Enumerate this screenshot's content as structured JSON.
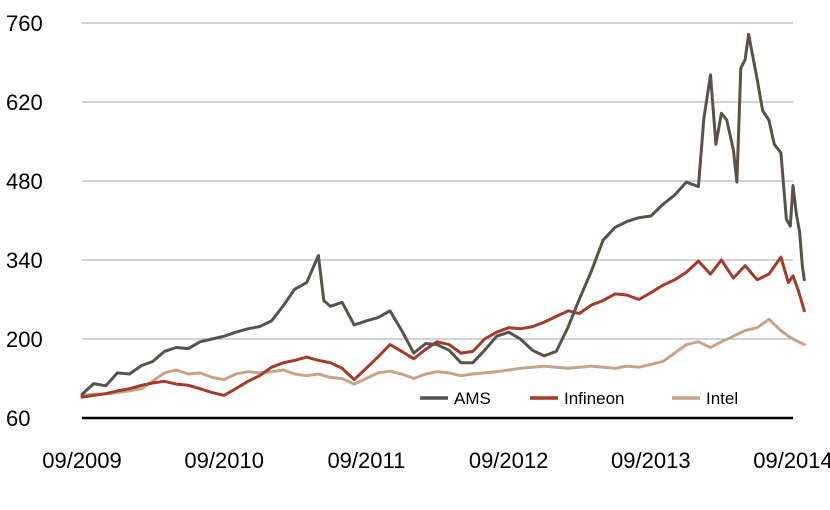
{
  "chart_data": {
    "type": "line",
    "title": "",
    "xlabel": "",
    "ylabel": "",
    "ylim": [
      60,
      760
    ],
    "y_ticks": [
      "760",
      "620",
      "480",
      "340",
      "200",
      "60"
    ],
    "x_ticks": [
      "09/2009",
      "09/2010",
      "09/2011",
      "09/2012",
      "09/2013",
      "09/2014"
    ],
    "x_range": [
      "2009-09",
      "2014-09"
    ],
    "grid": "horizontal",
    "legend_position": "bottom-right",
    "series": [
      {
        "name": "AMS",
        "color": "#57524c",
        "points": [
          [
            "2009-09-01",
            102
          ],
          [
            "2009-10-01",
            121
          ],
          [
            "2009-11-01",
            117
          ],
          [
            "2009-12-01",
            140
          ],
          [
            "2010-01-01",
            138
          ],
          [
            "2010-02-01",
            153
          ],
          [
            "2010-03-01",
            160
          ],
          [
            "2010-04-01",
            178
          ],
          [
            "2010-05-01",
            185
          ],
          [
            "2010-06-01",
            183
          ],
          [
            "2010-07-01",
            195
          ],
          [
            "2010-08-01",
            200
          ],
          [
            "2010-09-01",
            205
          ],
          [
            "2010-10-01",
            212
          ],
          [
            "2010-11-01",
            218
          ],
          [
            "2010-12-01",
            222
          ],
          [
            "2011-01-01",
            232
          ],
          [
            "2011-02-01",
            260
          ],
          [
            "2011-03-01",
            288
          ],
          [
            "2011-04-01",
            300
          ],
          [
            "2011-05-01",
            348
          ],
          [
            "2011-05-15",
            268
          ],
          [
            "2011-06-01",
            258
          ],
          [
            "2011-07-01",
            265
          ],
          [
            "2011-08-01",
            225
          ],
          [
            "2011-09-01",
            232
          ],
          [
            "2011-10-01",
            238
          ],
          [
            "2011-11-01",
            250
          ],
          [
            "2011-12-01",
            215
          ],
          [
            "2012-01-01",
            175
          ],
          [
            "2012-02-01",
            192
          ],
          [
            "2012-03-01",
            190
          ],
          [
            "2012-04-01",
            180
          ],
          [
            "2012-05-01",
            158
          ],
          [
            "2012-06-01",
            158
          ],
          [
            "2012-07-01",
            180
          ],
          [
            "2012-08-01",
            205
          ],
          [
            "2012-09-01",
            212
          ],
          [
            "2012-10-01",
            200
          ],
          [
            "2012-11-01",
            180
          ],
          [
            "2012-12-01",
            170
          ],
          [
            "2013-01-01",
            178
          ],
          [
            "2013-02-01",
            222
          ],
          [
            "2013-03-01",
            270
          ],
          [
            "2013-04-01",
            320
          ],
          [
            "2013-05-01",
            375
          ],
          [
            "2013-06-01",
            398
          ],
          [
            "2013-07-01",
            408
          ],
          [
            "2013-08-01",
            415
          ],
          [
            "2013-09-01",
            418
          ],
          [
            "2013-10-01",
            438
          ],
          [
            "2013-11-01",
            455
          ],
          [
            "2013-12-01",
            478
          ],
          [
            "2014-01-01",
            470
          ],
          [
            "2014-01-15",
            590
          ],
          [
            "2014-02-01",
            668
          ],
          [
            "2014-02-15",
            545
          ],
          [
            "2014-03-01",
            600
          ],
          [
            "2014-03-15",
            588
          ],
          [
            "2014-04-01",
            535
          ],
          [
            "2014-04-10",
            478
          ],
          [
            "2014-04-20",
            680
          ],
          [
            "2014-05-01",
            695
          ],
          [
            "2014-05-10",
            740
          ],
          [
            "2014-06-01",
            660
          ],
          [
            "2014-06-15",
            605
          ],
          [
            "2014-07-01",
            588
          ],
          [
            "2014-07-15",
            545
          ],
          [
            "2014-08-01",
            530
          ],
          [
            "2014-08-15",
            412
          ],
          [
            "2014-08-25",
            400
          ],
          [
            "2014-09-01",
            472
          ],
          [
            "2014-09-10",
            420
          ],
          [
            "2014-09-18",
            390
          ],
          [
            "2014-09-25",
            330
          ],
          [
            "2014-09-30",
            305
          ]
        ]
      },
      {
        "name": "Infineon",
        "color": "#a03c2e",
        "points": [
          [
            "2009-09-01",
            97
          ],
          [
            "2009-10-01",
            100
          ],
          [
            "2009-11-01",
            103
          ],
          [
            "2009-12-01",
            108
          ],
          [
            "2010-01-01",
            112
          ],
          [
            "2010-02-01",
            118
          ],
          [
            "2010-03-01",
            122
          ],
          [
            "2010-04-01",
            125
          ],
          [
            "2010-05-01",
            120
          ],
          [
            "2010-06-01",
            118
          ],
          [
            "2010-07-01",
            112
          ],
          [
            "2010-08-01",
            105
          ],
          [
            "2010-09-01",
            100
          ],
          [
            "2010-10-01",
            112
          ],
          [
            "2010-11-01",
            125
          ],
          [
            "2010-12-01",
            135
          ],
          [
            "2011-01-01",
            150
          ],
          [
            "2011-02-01",
            158
          ],
          [
            "2011-03-01",
            162
          ],
          [
            "2011-04-01",
            168
          ],
          [
            "2011-05-01",
            162
          ],
          [
            "2011-06-01",
            158
          ],
          [
            "2011-07-01",
            148
          ],
          [
            "2011-08-01",
            128
          ],
          [
            "2011-09-01",
            148
          ],
          [
            "2011-10-01",
            168
          ],
          [
            "2011-11-01",
            190
          ],
          [
            "2011-12-01",
            178
          ],
          [
            "2012-01-01",
            165
          ],
          [
            "2012-02-01",
            182
          ],
          [
            "2012-03-01",
            195
          ],
          [
            "2012-04-01",
            190
          ],
          [
            "2012-05-01",
            175
          ],
          [
            "2012-06-01",
            178
          ],
          [
            "2012-07-01",
            200
          ],
          [
            "2012-08-01",
            212
          ],
          [
            "2012-09-01",
            220
          ],
          [
            "2012-10-01",
            218
          ],
          [
            "2012-11-01",
            222
          ],
          [
            "2012-12-01",
            230
          ],
          [
            "2013-01-01",
            240
          ],
          [
            "2013-02-01",
            250
          ],
          [
            "2013-03-01",
            245
          ],
          [
            "2013-04-01",
            260
          ],
          [
            "2013-05-01",
            268
          ],
          [
            "2013-06-01",
            280
          ],
          [
            "2013-07-01",
            278
          ],
          [
            "2013-08-01",
            270
          ],
          [
            "2013-09-01",
            282
          ],
          [
            "2013-10-01",
            295
          ],
          [
            "2013-11-01",
            305
          ],
          [
            "2013-12-01",
            318
          ],
          [
            "2014-01-01",
            338
          ],
          [
            "2014-02-01",
            315
          ],
          [
            "2014-03-01",
            340
          ],
          [
            "2014-04-01",
            308
          ],
          [
            "2014-05-01",
            330
          ],
          [
            "2014-06-01",
            305
          ],
          [
            "2014-07-01",
            315
          ],
          [
            "2014-08-01",
            345
          ],
          [
            "2014-08-20",
            300
          ],
          [
            "2014-09-01",
            312
          ],
          [
            "2014-09-15",
            285
          ],
          [
            "2014-09-30",
            250
          ]
        ]
      },
      {
        "name": "Intel",
        "color": "#c5a489",
        "points": [
          [
            "2009-09-01",
            100
          ],
          [
            "2009-10-01",
            102
          ],
          [
            "2009-11-01",
            103
          ],
          [
            "2009-12-01",
            105
          ],
          [
            "2010-01-01",
            108
          ],
          [
            "2010-02-01",
            112
          ],
          [
            "2010-03-01",
            125
          ],
          [
            "2010-04-01",
            140
          ],
          [
            "2010-05-01",
            145
          ],
          [
            "2010-06-01",
            138
          ],
          [
            "2010-07-01",
            140
          ],
          [
            "2010-08-01",
            132
          ],
          [
            "2010-09-01",
            128
          ],
          [
            "2010-10-01",
            138
          ],
          [
            "2010-11-01",
            142
          ],
          [
            "2010-12-01",
            140
          ],
          [
            "2011-01-01",
            142
          ],
          [
            "2011-02-01",
            145
          ],
          [
            "2011-03-01",
            138
          ],
          [
            "2011-04-01",
            135
          ],
          [
            "2011-05-01",
            138
          ],
          [
            "2011-06-01",
            132
          ],
          [
            "2011-07-01",
            130
          ],
          [
            "2011-08-01",
            120
          ],
          [
            "2011-09-01",
            130
          ],
          [
            "2011-10-01",
            140
          ],
          [
            "2011-11-01",
            143
          ],
          [
            "2011-12-01",
            138
          ],
          [
            "2012-01-01",
            130
          ],
          [
            "2012-02-01",
            138
          ],
          [
            "2012-03-01",
            142
          ],
          [
            "2012-04-01",
            140
          ],
          [
            "2012-05-01",
            135
          ],
          [
            "2012-06-01",
            138
          ],
          [
            "2012-07-01",
            140
          ],
          [
            "2012-08-01",
            142
          ],
          [
            "2012-09-01",
            145
          ],
          [
            "2012-10-01",
            148
          ],
          [
            "2012-11-01",
            150
          ],
          [
            "2012-12-01",
            152
          ],
          [
            "2013-01-01",
            150
          ],
          [
            "2013-02-01",
            148
          ],
          [
            "2013-03-01",
            150
          ],
          [
            "2013-04-01",
            152
          ],
          [
            "2013-05-01",
            150
          ],
          [
            "2013-06-01",
            148
          ],
          [
            "2013-07-01",
            152
          ],
          [
            "2013-08-01",
            150
          ],
          [
            "2013-09-01",
            155
          ],
          [
            "2013-10-01",
            160
          ],
          [
            "2013-11-01",
            175
          ],
          [
            "2013-12-01",
            190
          ],
          [
            "2014-01-01",
            195
          ],
          [
            "2014-02-01",
            185
          ],
          [
            "2014-03-01",
            195
          ],
          [
            "2014-04-01",
            205
          ],
          [
            "2014-05-01",
            215
          ],
          [
            "2014-06-01",
            220
          ],
          [
            "2014-07-01",
            235
          ],
          [
            "2014-08-01",
            215
          ],
          [
            "2014-08-20",
            205
          ],
          [
            "2014-09-01",
            200
          ],
          [
            "2014-09-15",
            195
          ],
          [
            "2014-09-30",
            190
          ]
        ]
      }
    ]
  }
}
